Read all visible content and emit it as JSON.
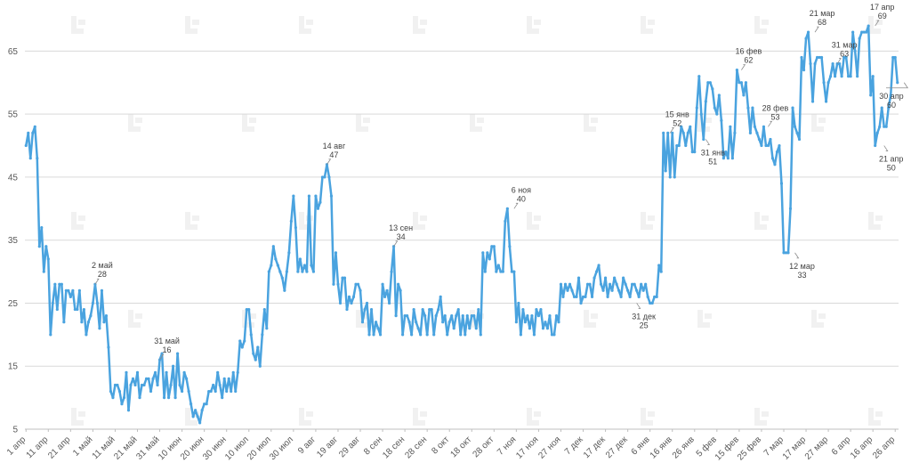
{
  "chart_data": {
    "type": "line",
    "title": "",
    "xlabel": "",
    "ylabel": "",
    "ylim": [
      5,
      70
    ],
    "grid": true,
    "color": "#4aa3df",
    "y_ticks": [
      5,
      15,
      25,
      35,
      45,
      55,
      65
    ],
    "x_ticks": [
      "1 апр",
      "11 апр",
      "21 апр",
      "1 май",
      "11 май",
      "21 май",
      "31 май",
      "10 июн",
      "20 июн",
      "30 июн",
      "10 июл",
      "20 июл",
      "30 июл",
      "9 авг",
      "19 авг",
      "29 авг",
      "8 сен",
      "18 сен",
      "28 сен",
      "8 окт",
      "18 окт",
      "28 окт",
      "7 ноя",
      "17 ноя",
      "27 ноя",
      "7 дек",
      "17 дек",
      "27 дек",
      "6 янв",
      "16 янв",
      "26 янв",
      "5 фев",
      "15 фев",
      "25 фев",
      "7 мар",
      "17 мар",
      "27 мар",
      "6 апр",
      "16 апр",
      "26 апр"
    ],
    "annotations": [
      {
        "index": 31,
        "date": "2 май",
        "value": 28
      },
      {
        "index": 60,
        "date": "31 май",
        "value": 16
      },
      {
        "index": 135,
        "date": "14 авг",
        "value": 47
      },
      {
        "index": 165,
        "date": "13 сен",
        "value": 34
      },
      {
        "index": 219,
        "date": "6 ноя",
        "value": 40
      },
      {
        "index": 274,
        "date": "31 дек",
        "value": 25
      },
      {
        "index": 289,
        "date": "15 янв",
        "value": 52
      },
      {
        "index": 305,
        "date": "31 янв",
        "value": 51
      },
      {
        "index": 321,
        "date": "16 фев",
        "value": 62
      },
      {
        "index": 333,
        "date": "28 фев",
        "value": 53
      },
      {
        "index": 345,
        "date": "12 мар",
        "value": 33
      },
      {
        "index": 354,
        "date": "21 мар",
        "value": 68
      },
      {
        "index": 364,
        "date": "31 мар",
        "value": 63
      },
      {
        "index": 381,
        "date": "17 апр",
        "value": 69
      },
      {
        "index": 385,
        "date": "21 апр",
        "value": 50
      },
      {
        "index": 394,
        "date": "30 апр",
        "value": 60
      }
    ],
    "series": [
      {
        "values": [
          50,
          52,
          48,
          52,
          53,
          48,
          34,
          37,
          30,
          34,
          32,
          20,
          25,
          28,
          24,
          28,
          28,
          22,
          27,
          27,
          26,
          27,
          24,
          24,
          27,
          22,
          24,
          20,
          22,
          23,
          25,
          28,
          25,
          21,
          27,
          22,
          23,
          18,
          11,
          10,
          12,
          12,
          11,
          9,
          10,
          14,
          8,
          12,
          13,
          12,
          14,
          10,
          12,
          12,
          13,
          13,
          11,
          13,
          14,
          12,
          16,
          17,
          10,
          14,
          10,
          12,
          15,
          10,
          17,
          12,
          11,
          14,
          13,
          11,
          9,
          7,
          8,
          7,
          6,
          8,
          9,
          9,
          11,
          11,
          12,
          11,
          14,
          12,
          10,
          13,
          11,
          13,
          11,
          14,
          11,
          14,
          19,
          18,
          19,
          24,
          24,
          20,
          17,
          16,
          18,
          15,
          20,
          24,
          21,
          30,
          31,
          34,
          32,
          31,
          30,
          29,
          27,
          30,
          33,
          38,
          42,
          37,
          30,
          32,
          30,
          31,
          30,
          42,
          31,
          30,
          42,
          40,
          41,
          45,
          45,
          47,
          45,
          42,
          28,
          33,
          28,
          25,
          29,
          29,
          24,
          26,
          25,
          26,
          28,
          28,
          27,
          22,
          24,
          25,
          20,
          24,
          20,
          22,
          21,
          20,
          28,
          26,
          27,
          25,
          30,
          34,
          23,
          28,
          27,
          20,
          23,
          23,
          22,
          20,
          24,
          22,
          21,
          20,
          24,
          23,
          20,
          24,
          24,
          20,
          23,
          24,
          26,
          22,
          23,
          20,
          22,
          23,
          21,
          23,
          24,
          20,
          23,
          20,
          23,
          21,
          23,
          23,
          21,
          24,
          20,
          33,
          30,
          33,
          32,
          34,
          34,
          30,
          31,
          30,
          30,
          38,
          40,
          34,
          30,
          30,
          22,
          25,
          20,
          24,
          22,
          23,
          21,
          23,
          20,
          24,
          23,
          24,
          21,
          22,
          21,
          23,
          20,
          20,
          23,
          22,
          28,
          26,
          28,
          27,
          28,
          27,
          26,
          26,
          29,
          25,
          26,
          26,
          28,
          28,
          26,
          29,
          30,
          31,
          28,
          27,
          29,
          26,
          28,
          27,
          29,
          28,
          27,
          26,
          29,
          28,
          27,
          26,
          28,
          28,
          27,
          26,
          28,
          27,
          28,
          26,
          25,
          25,
          26,
          26,
          31,
          30,
          52,
          46,
          52,
          45,
          52,
          45,
          50,
          50,
          53,
          52,
          50,
          52,
          53,
          49,
          49,
          56,
          61,
          55,
          51,
          57,
          60,
          60,
          59,
          56,
          55,
          58,
          54,
          48,
          49,
          48,
          53,
          48,
          52,
          62,
          60,
          60,
          58,
          60,
          56,
          52,
          56,
          53,
          52,
          51,
          50,
          53,
          50,
          50,
          51,
          48,
          47,
          49,
          50,
          44,
          33,
          33,
          33,
          40,
          56,
          53,
          52,
          51,
          64,
          62,
          67,
          68,
          63,
          57,
          63,
          64,
          64,
          64,
          60,
          57,
          60,
          61,
          63,
          61,
          63,
          63,
          61,
          64,
          64,
          61,
          61,
          68,
          65,
          61,
          67,
          68,
          68,
          68,
          69,
          58,
          61,
          50,
          52,
          53,
          56,
          53,
          53,
          56,
          58,
          64,
          64,
          60
        ]
      }
    ]
  }
}
